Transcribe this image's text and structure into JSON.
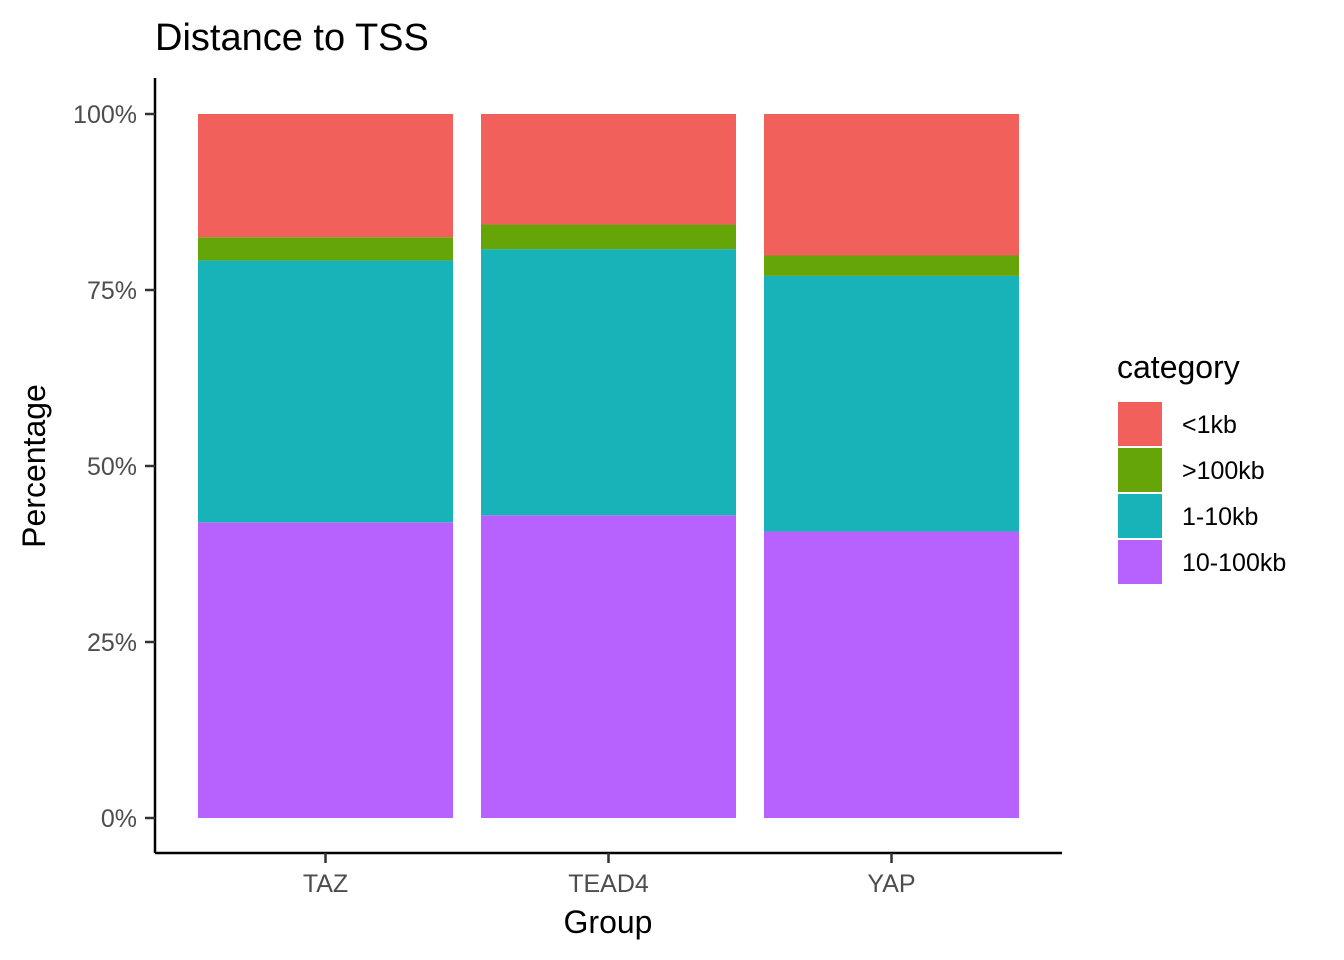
{
  "chart_data": {
    "type": "bar",
    "stacked": true,
    "title": "Distance to TSS",
    "xlabel": "Group",
    "ylabel": "Percentage",
    "categories": [
      "TAZ",
      "TEAD4",
      "YAP"
    ],
    "ylim": [
      0,
      100
    ],
    "yticks": [
      0,
      25,
      50,
      75,
      100
    ],
    "ytick_labels": [
      "0%",
      "25%",
      "50%",
      "75%",
      "100%"
    ],
    "grid": false,
    "legend_position": "right",
    "legend_title": "category",
    "series": [
      {
        "name": "10-100kb",
        "color": "#B762FF",
        "values": [
          42.0,
          43.0,
          40.7
        ]
      },
      {
        "name": "1-10kb",
        "color": "#18B3B8",
        "values": [
          37.2,
          37.8,
          36.3
        ]
      },
      {
        "name": ">100kb",
        "color": "#66A508",
        "values": [
          3.3,
          3.5,
          2.9
        ]
      },
      {
        "name": "<1kb",
        "color": "#F2605C",
        "values": [
          17.5,
          15.7,
          20.1
        ]
      }
    ],
    "legend_order": [
      "<1kb",
      ">100kb",
      "1-10kb",
      "10-100kb"
    ]
  }
}
